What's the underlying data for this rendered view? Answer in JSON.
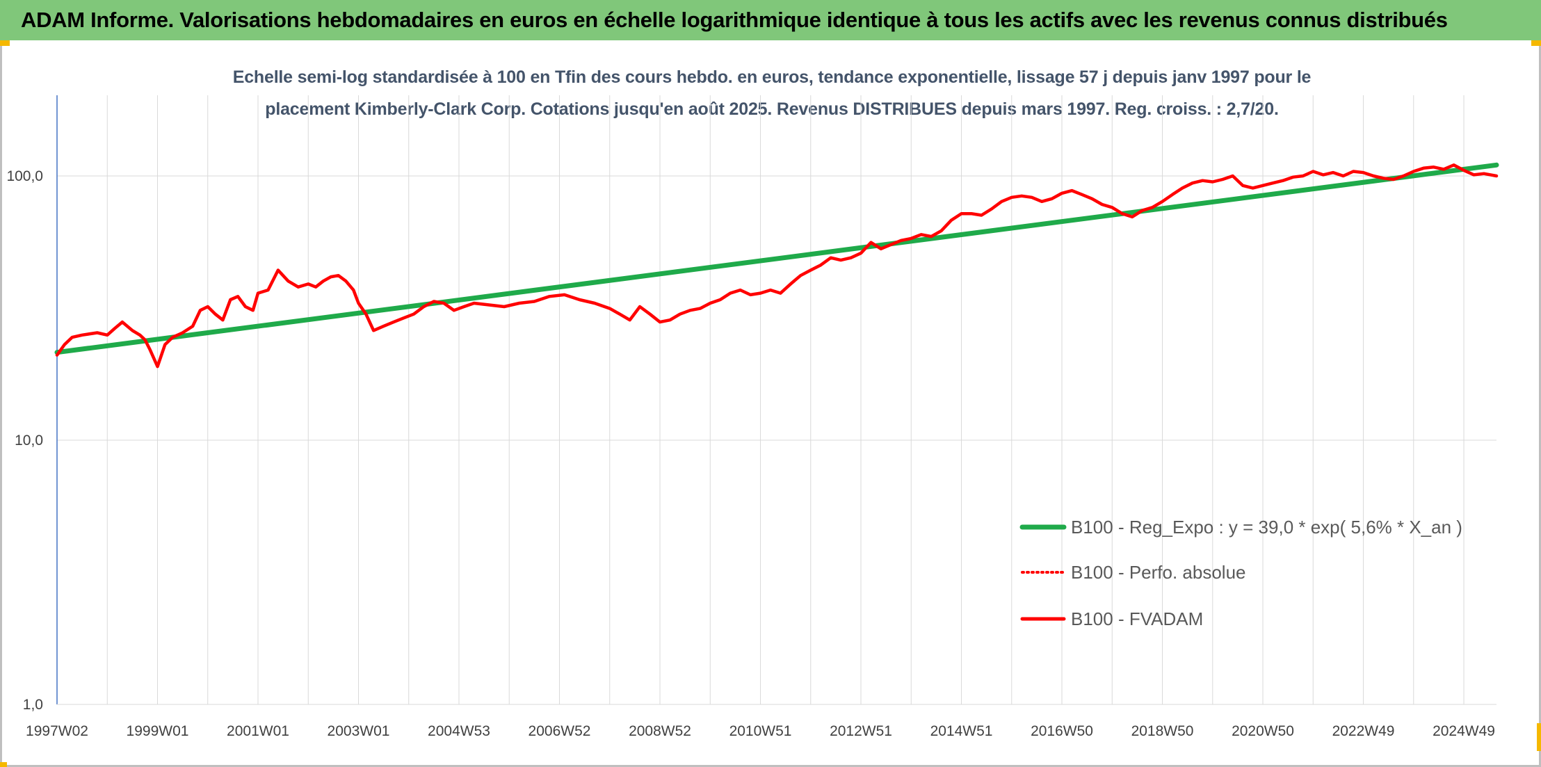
{
  "header": {
    "title": "ADAM Informe. Valorisations hebdomadaires en euros en échelle logarithmique identique à tous les actifs avec les revenus connus distribués"
  },
  "colors": {
    "header_band": "#80c77a",
    "trend_line": "#1faa4a",
    "fvadam_line": "#ff0000",
    "perfo_line": "#ff0000",
    "title_text": "#44546a",
    "gridline": "#d9d9d9",
    "corner_accent": "#f5b800"
  },
  "chart_data": {
    "type": "line",
    "title_line1": "Echelle semi-log standardisée à 100 en Tfin des cours hebdo. en euros, tendance exponentielle, lissage 57 j depuis janv 1997 pour le",
    "title_line2": "placement Kimberly-Clark Corp. Cotations jusqu'en août 2025. Revenus DISTRIBUES depuis mars 1997. Reg. croiss. : 2,7/20.",
    "y_scale": "log",
    "ylim": [
      1,
      200
    ],
    "y_ticks": [
      {
        "value": 100,
        "label": "100,0"
      },
      {
        "value": 10,
        "label": "10,0"
      },
      {
        "value": 1,
        "label": "1,0"
      }
    ],
    "xlim": [
      1997.0,
      2025.65
    ],
    "x_tick_labels": [
      {
        "x": 1997.0,
        "label": "1997W02"
      },
      {
        "x": 1999.0,
        "label": "1999W01"
      },
      {
        "x": 2001.0,
        "label": "2001W01"
      },
      {
        "x": 2003.0,
        "label": "2003W01"
      },
      {
        "x": 2005.0,
        "label": "2004W53"
      },
      {
        "x": 2007.0,
        "label": "2006W52"
      },
      {
        "x": 2009.0,
        "label": "2008W52"
      },
      {
        "x": 2011.0,
        "label": "2010W51"
      },
      {
        "x": 2013.0,
        "label": "2012W51"
      },
      {
        "x": 2015.0,
        "label": "2014W51"
      },
      {
        "x": 2017.0,
        "label": "2016W50"
      },
      {
        "x": 2019.0,
        "label": "2018W50"
      },
      {
        "x": 2021.0,
        "label": "2020W50"
      },
      {
        "x": 2023.0,
        "label": "2022W49"
      },
      {
        "x": 2025.0,
        "label": "2024W49"
      }
    ],
    "x_gridlines": [
      1997.0,
      1998.0,
      1999.0,
      2000.0,
      2001.0,
      2002.0,
      2003.0,
      2004.0,
      2005.0,
      2006.0,
      2007.0,
      2008.0,
      2009.0,
      2010.0,
      2011.0,
      2012.0,
      2013.0,
      2014.0,
      2015.0,
      2016.0,
      2017.0,
      2018.0,
      2019.0,
      2020.0,
      2021.0,
      2022.0,
      2023.0,
      2024.0,
      2025.0
    ],
    "grid": true,
    "legend_position": "bottom-right inside plot",
    "series": [
      {
        "name": "B100 - Reg_Expo : y = 39,0 * exp( 5,6% *  X_an )",
        "style": "solid-thick",
        "color": "#1faa4a",
        "x": [
          1997.0,
          2025.65
        ],
        "y": [
          21.5,
          110.0
        ]
      },
      {
        "name": "B100 - Perfo. absolue",
        "style": "dotted",
        "color": "#ff0000",
        "x": [],
        "y": []
      },
      {
        "name": "B100 - FVADAM",
        "style": "solid",
        "color": "#ff0000",
        "x": [
          1997.0,
          1997.15,
          1997.3,
          1997.5,
          1997.8,
          1998.0,
          1998.15,
          1998.3,
          1998.5,
          1998.65,
          1998.75,
          1998.85,
          1999.0,
          1999.15,
          1999.3,
          1999.5,
          1999.7,
          1999.85,
          2000.0,
          2000.15,
          2000.3,
          2000.45,
          2000.6,
          2000.75,
          2000.9,
          2001.0,
          2001.2,
          2001.4,
          2001.6,
          2001.8,
          2002.0,
          2002.15,
          2002.3,
          2002.45,
          2002.6,
          2002.75,
          2002.9,
          2003.0,
          2003.15,
          2003.3,
          2003.5,
          2003.7,
          2003.9,
          2004.1,
          2004.3,
          2004.5,
          2004.7,
          2004.9,
          2005.1,
          2005.3,
          2005.6,
          2005.9,
          2006.2,
          2006.5,
          2006.8,
          2007.1,
          2007.4,
          2007.7,
          2008.0,
          2008.2,
          2008.4,
          2008.6,
          2008.8,
          2009.0,
          2009.2,
          2009.4,
          2009.6,
          2009.8,
          2010.0,
          2010.2,
          2010.4,
          2010.6,
          2010.8,
          2011.0,
          2011.2,
          2011.4,
          2011.6,
          2011.8,
          2012.0,
          2012.2,
          2012.4,
          2012.6,
          2012.8,
          2013.0,
          2013.2,
          2013.4,
          2013.6,
          2013.8,
          2014.0,
          2014.2,
          2014.4,
          2014.6,
          2014.8,
          2015.0,
          2015.2,
          2015.4,
          2015.6,
          2015.8,
          2016.0,
          2016.2,
          2016.4,
          2016.6,
          2016.8,
          2017.0,
          2017.2,
          2017.4,
          2017.6,
          2017.8,
          2018.0,
          2018.2,
          2018.4,
          2018.6,
          2018.8,
          2019.0,
          2019.2,
          2019.4,
          2019.6,
          2019.8,
          2020.0,
          2020.2,
          2020.4,
          2020.6,
          2020.8,
          2021.0,
          2021.2,
          2021.4,
          2021.6,
          2021.8,
          2022.0,
          2022.2,
          2022.4,
          2022.6,
          2022.8,
          2023.0,
          2023.2,
          2023.4,
          2023.6,
          2023.8,
          2024.0,
          2024.2,
          2024.4,
          2024.6,
          2024.8,
          2025.0,
          2025.2,
          2025.4,
          2025.65
        ],
        "y": [
          21.0,
          23.0,
          24.5,
          25.0,
          25.5,
          25.0,
          26.5,
          28.0,
          26.0,
          25.0,
          24.0,
          22.0,
          19.0,
          23.0,
          24.5,
          25.5,
          27.0,
          31.0,
          32.0,
          30.0,
          28.5,
          34.0,
          35.0,
          32.0,
          31.0,
          36.0,
          37.0,
          44.0,
          40.0,
          38.0,
          39.0,
          38.0,
          40.0,
          41.5,
          42.0,
          40.0,
          37.0,
          33.0,
          30.0,
          26.0,
          27.0,
          28.0,
          29.0,
          30.0,
          32.0,
          33.5,
          33.0,
          31.0,
          32.0,
          33.0,
          32.5,
          32.0,
          33.0,
          33.5,
          35.0,
          35.5,
          34.0,
          33.0,
          31.5,
          30.0,
          28.5,
          32.0,
          30.0,
          28.0,
          28.5,
          30.0,
          31.0,
          31.5,
          33.0,
          34.0,
          36.0,
          37.0,
          35.5,
          36.0,
          37.0,
          36.0,
          39.0,
          42.0,
          44.0,
          46.0,
          49.0,
          48.0,
          49.0,
          51.0,
          56.0,
          53.0,
          55.0,
          57.0,
          58.0,
          60.0,
          59.0,
          62.0,
          68.0,
          72.0,
          72.0,
          71.0,
          75.0,
          80.0,
          83.0,
          84.0,
          83.0,
          80.0,
          82.0,
          86.0,
          88.0,
          85.0,
          82.0,
          78.0,
          76.0,
          72.0,
          70.0,
          74.0,
          76.0,
          80.0,
          85.0,
          90.0,
          94.0,
          96.0,
          95.0,
          97.0,
          100.0,
          92.0,
          90.0,
          92.0,
          94.0,
          96.0,
          99.0,
          100.0,
          104.0,
          101.0,
          103.0,
          100.0,
          104.0,
          103.0,
          100.0,
          98.0,
          97.0,
          100.0,
          104.0,
          107.0,
          108.0,
          106.0,
          110.0,
          105.0,
          101.0,
          102.0,
          100.0
        ]
      }
    ]
  }
}
